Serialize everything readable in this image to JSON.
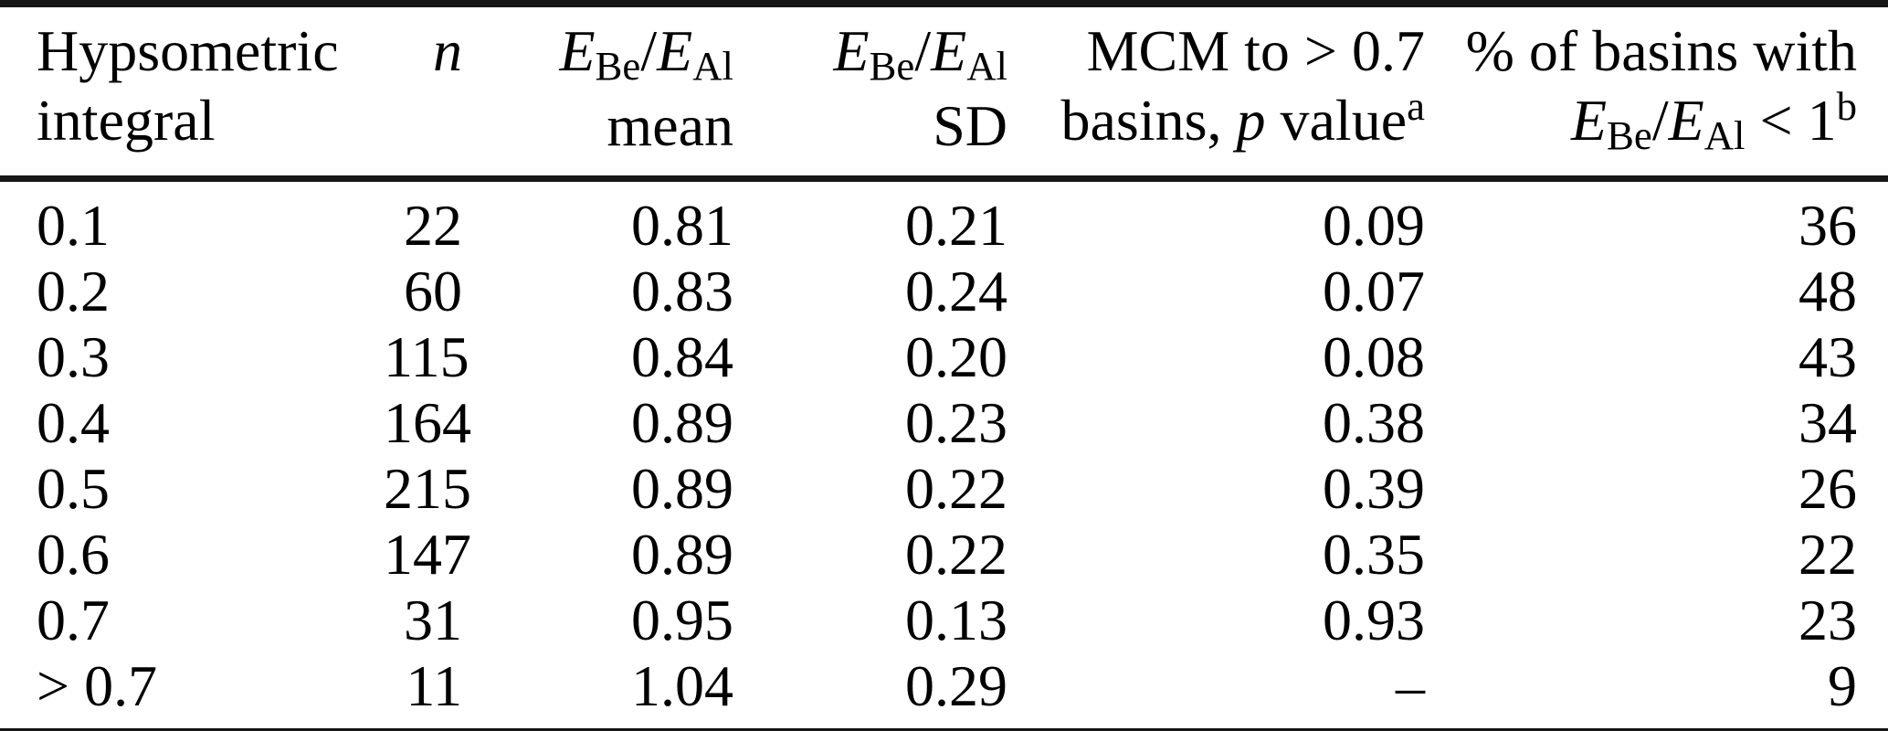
{
  "colors": {
    "background": "#ffffff",
    "text": "#000000",
    "rule": "#161616"
  },
  "table": {
    "columns": [
      {
        "key": "hypsometric-integral",
        "align": "left",
        "header_lines": [
          [
            {
              "t": "Hypsometric"
            }
          ],
          [
            {
              "t": "integral"
            }
          ]
        ]
      },
      {
        "key": "n",
        "align": "right",
        "header_lines": [
          [
            {
              "t": "n",
              "s": "i"
            }
          ],
          []
        ]
      },
      {
        "key": "ebe-eal-mean",
        "align": "right",
        "header_lines": [
          [
            {
              "t": "E",
              "s": "i"
            },
            {
              "t": "Be",
              "s": "sub"
            },
            {
              "t": "/"
            },
            {
              "t": "E",
              "s": "i"
            },
            {
              "t": "Al",
              "s": "sub"
            }
          ],
          [
            {
              "t": "mean"
            }
          ]
        ]
      },
      {
        "key": "ebe-eal-sd",
        "align": "right",
        "header_lines": [
          [
            {
              "t": "E",
              "s": "i"
            },
            {
              "t": "Be",
              "s": "sub"
            },
            {
              "t": "/"
            },
            {
              "t": "E",
              "s": "i"
            },
            {
              "t": "Al",
              "s": "sub"
            }
          ],
          [
            {
              "t": "SD"
            }
          ]
        ]
      },
      {
        "key": "mcm-p-value",
        "align": "right",
        "header_lines": [
          [
            {
              "t": "MCM to > 0.7"
            }
          ],
          [
            {
              "t": "basins, "
            },
            {
              "t": "p",
              "s": "i"
            },
            {
              "t": " value"
            },
            {
              "t": "a",
              "s": "sup"
            }
          ]
        ]
      },
      {
        "key": "pct-basins-lt-1",
        "align": "right",
        "header_lines": [
          [
            {
              "t": "% of basins with"
            }
          ],
          [
            {
              "t": "E",
              "s": "i"
            },
            {
              "t": "Be",
              "s": "sub"
            },
            {
              "t": "/"
            },
            {
              "t": "E",
              "s": "i"
            },
            {
              "t": "Al",
              "s": "sub"
            },
            {
              "t": " < 1"
            },
            {
              "t": "b",
              "s": "sup"
            }
          ]
        ]
      }
    ],
    "rows": [
      [
        "0.1",
        "22",
        "0.81",
        "0.21",
        "0.09",
        "36"
      ],
      [
        "0.2",
        "60",
        "0.83",
        "0.24",
        "0.07",
        "48"
      ],
      [
        "0.3",
        "115",
        "0.84",
        "0.20",
        "0.08",
        "43"
      ],
      [
        "0.4",
        "164",
        "0.89",
        "0.23",
        "0.38",
        "34"
      ],
      [
        "0.5",
        "215",
        "0.89",
        "0.22",
        "0.39",
        "26"
      ],
      [
        "0.6",
        "147",
        "0.89",
        "0.22",
        "0.35",
        "22"
      ],
      [
        "0.7",
        "31",
        "0.95",
        "0.13",
        "0.93",
        "23"
      ],
      [
        "> 0.7",
        "11",
        "1.04",
        "0.29",
        "–",
        "9"
      ]
    ]
  }
}
